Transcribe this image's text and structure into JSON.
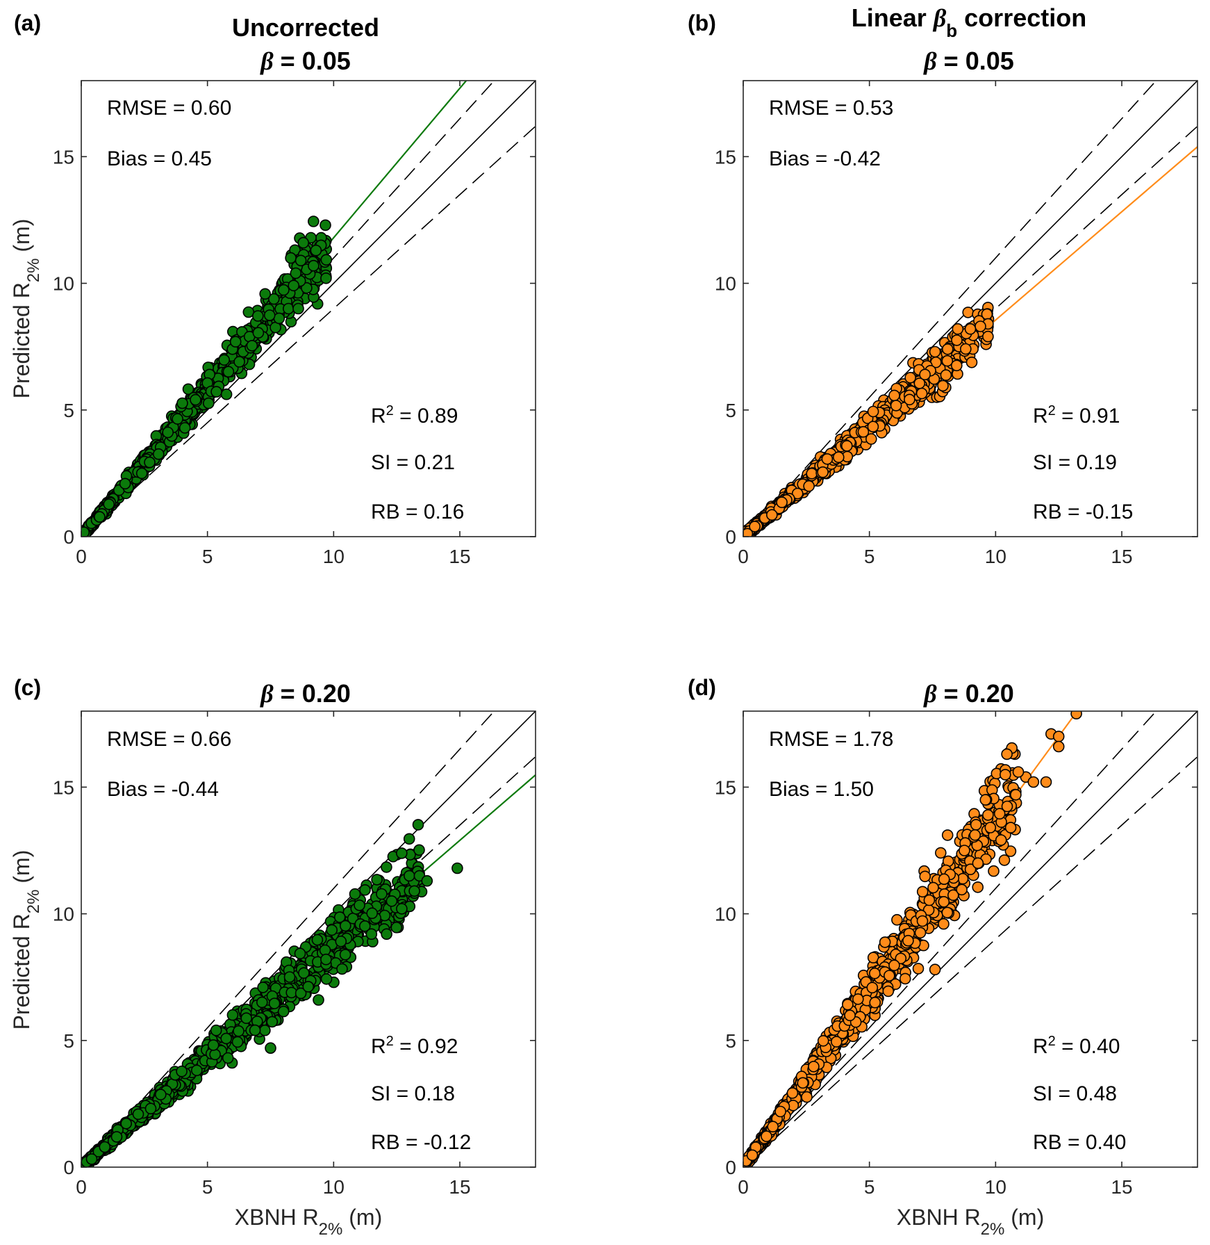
{
  "chart_data": [
    {
      "panel": "(a)",
      "type": "scatter",
      "title_lines": [
        "Uncorrected",
        "β = 0.05"
      ],
      "xlabel": "XBNH R2% (m)",
      "ylabel": "Predicted R2% (m)",
      "xlim": [
        0,
        18
      ],
      "ylim": [
        0,
        18
      ],
      "xticks": [
        0,
        5,
        10,
        15
      ],
      "yticks": [
        0,
        5,
        10,
        15
      ],
      "marker_color": "#0b7a0b",
      "fit_slope": 1.18,
      "fit_end_x": 15.3,
      "ref_lines": {
        "identity_slope": 1.0,
        "upper_dashed_slope": 1.1,
        "lower_dashed_slope": 0.9
      },
      "stats_top": [
        {
          "label": "RMSE",
          "value": "0.60"
        },
        {
          "label": "Bias",
          "value": "0.45"
        }
      ],
      "r2": "0.89",
      "si": "0.21",
      "rb": "0.16",
      "series_gen": {
        "xmax": 9.7,
        "slope_center": 1.16,
        "slope_spread": 0.13,
        "n": 1000,
        "seed": 11
      },
      "points": [
        [
          9.1,
          11.8
        ],
        [
          8.8,
          11.6
        ],
        [
          9.5,
          11.5
        ],
        [
          9.3,
          11.3
        ],
        [
          8.3,
          11.0
        ],
        [
          8.7,
          10.9
        ],
        [
          8.5,
          10.4
        ],
        [
          9.7,
          10.2
        ],
        [
          8.6,
          9.0
        ]
      ]
    },
    {
      "panel": "(b)",
      "type": "scatter",
      "title_lines": [
        "Linear βb correction",
        "β = 0.05"
      ],
      "xlabel": "",
      "ylabel": "",
      "xlim": [
        0,
        18
      ],
      "ylim": [
        0,
        18
      ],
      "xticks": [
        0,
        5,
        10,
        15
      ],
      "yticks": [
        0,
        5,
        10,
        15
      ],
      "marker_color": "#ff8c1a",
      "fit_slope": 0.855,
      "fit_end_x": 18,
      "ref_lines": {
        "identity_slope": 1.0,
        "upper_dashed_slope": 1.1,
        "lower_dashed_slope": 0.9
      },
      "stats_top": [
        {
          "label": "RMSE",
          "value": "0.53"
        },
        {
          "label": "Bias",
          "value": "-0.42"
        }
      ],
      "r2": "0.91",
      "si": "0.19",
      "rb": "-0.15",
      "series_gen": {
        "xmax": 9.7,
        "slope_center": 0.86,
        "slope_spread": 0.1,
        "n": 1000,
        "seed": 23
      },
      "points": [
        [
          9.7,
          8.4
        ],
        [
          9.4,
          8.3
        ],
        [
          9.0,
          8.2
        ],
        [
          8.5,
          8.2
        ],
        [
          9.7,
          7.9
        ],
        [
          8.1,
          7.4
        ],
        [
          7.6,
          7.3
        ],
        [
          7.2,
          6.4
        ]
      ]
    },
    {
      "panel": "(c)",
      "type": "scatter",
      "title_lines": [
        "β = 0.20"
      ],
      "xlabel": "XBNH R2% (m)",
      "ylabel": "Predicted R2% (m)",
      "xlim": [
        0,
        18
      ],
      "ylim": [
        0,
        18
      ],
      "xticks": [
        0,
        5,
        10,
        15
      ],
      "yticks": [
        0,
        5,
        10,
        15
      ],
      "marker_color": "#0b7a0b",
      "fit_slope": 0.86,
      "fit_end_x": 18,
      "ref_lines": {
        "identity_slope": 1.0,
        "upper_dashed_slope": 1.1,
        "lower_dashed_slope": 0.9
      },
      "stats_top": [
        {
          "label": "RMSE",
          "value": "0.66"
        },
        {
          "label": "Bias",
          "value": "-0.44"
        }
      ],
      "r2": "0.92",
      "si": "0.18",
      "rb": "-0.12",
      "series_gen": {
        "xmax": 13.5,
        "slope_center": 0.87,
        "slope_spread": 0.12,
        "n": 1100,
        "seed": 37
      },
      "points": [
        [
          14.9,
          11.8
        ],
        [
          13.0,
          11.5
        ],
        [
          13.4,
          11.5
        ],
        [
          13.7,
          11.3
        ],
        [
          13.2,
          10.9
        ],
        [
          12.3,
          10.5
        ],
        [
          12.7,
          10.2
        ],
        [
          12.0,
          9.4
        ],
        [
          11.5,
          9.2
        ],
        [
          12.1,
          9.2
        ],
        [
          9.7,
          8.2
        ],
        [
          9.4,
          6.6
        ],
        [
          7.5,
          4.7
        ]
      ]
    },
    {
      "panel": "(d)",
      "type": "scatter",
      "title_lines": [
        "β = 0.20"
      ],
      "xlabel": "XBNH R2% (m)",
      "ylabel": "",
      "xlim": [
        0,
        18
      ],
      "ylim": [
        0,
        18
      ],
      "xticks": [
        0,
        5,
        10,
        15
      ],
      "yticks": [
        0,
        5,
        10,
        15
      ],
      "marker_color": "#ff8c1a",
      "fit_slope": 1.36,
      "fit_end_x": 13.2,
      "ref_lines": {
        "identity_slope": 1.0,
        "upper_dashed_slope": 1.1,
        "lower_dashed_slope": 0.9
      },
      "stats_top": [
        {
          "label": "RMSE",
          "value": "1.78"
        },
        {
          "label": "Bias",
          "value": "1.50"
        }
      ],
      "r2": "0.40",
      "si": "0.48",
      "rb": "0.40",
      "series_gen": {
        "xmax": 10.8,
        "slope_center": 1.38,
        "slope_spread": 0.17,
        "n": 1100,
        "seed": 53
      },
      "points": [
        [
          13.2,
          17.9
        ],
        [
          12.2,
          17.1
        ],
        [
          12.5,
          17.0
        ],
        [
          12.5,
          16.6
        ],
        [
          11.2,
          15.4
        ],
        [
          10.9,
          15.6
        ],
        [
          11.5,
          15.2
        ],
        [
          12.0,
          15.2
        ],
        [
          10.8,
          14.7
        ],
        [
          10.6,
          13.4
        ],
        [
          9.6,
          14.5
        ],
        [
          9.3,
          12.0
        ],
        [
          9.7,
          13.9
        ],
        [
          7.6,
          7.8
        ]
      ]
    }
  ]
}
